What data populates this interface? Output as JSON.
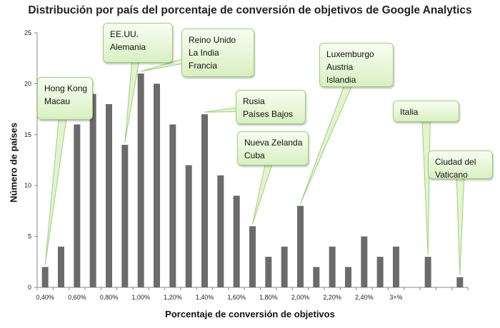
{
  "chart_data": {
    "type": "bar",
    "title": "Distribución por país del porcentaje de conversión de objetivos de Google Analytics",
    "xlabel": "Porcentaje de conversión de objetivos",
    "ylabel": "Número de países",
    "ylim": [
      0,
      25
    ],
    "y_ticks": [
      "0",
      "5",
      "10",
      "15",
      "20",
      "25"
    ],
    "x_tick_labels": [
      "0,40%",
      "0,60%",
      "0,80%",
      "1,00%",
      "1,20%",
      "1,40%",
      "1,60%",
      "1,80%",
      "2,00%",
      "2,20%",
      "2,40%",
      "3+%"
    ],
    "values": [
      2,
      4,
      16,
      19,
      18,
      14,
      21,
      20,
      16,
      12,
      17,
      11,
      9,
      6,
      3,
      4,
      8,
      2,
      4,
      2,
      5,
      3,
      4,
      0,
      3,
      0,
      1
    ],
    "color": "#6b6b6b",
    "grid": false,
    "annotations": [
      {
        "lines": [
          "Hong Kong",
          "Macau"
        ],
        "bar_index": 0
      },
      {
        "lines": [
          "EE.UU.",
          "Alemania"
        ],
        "bar_index": 5
      },
      {
        "lines": [
          "Reino Unido",
          "La India",
          "Francia"
        ],
        "bar_index": 6
      },
      {
        "lines": [
          "Rusia",
          "Países Bajos"
        ],
        "bar_index": 10
      },
      {
        "lines": [
          "Nueva Zelanda",
          "Cuba"
        ],
        "bar_index": 13
      },
      {
        "lines": [
          "Luxemburgo",
          "Austria",
          "Islandia"
        ],
        "bar_index": 16
      },
      {
        "lines": [
          "Italia"
        ],
        "bar_index": 24
      },
      {
        "lines": [
          "Ciudad del",
          "Vaticano"
        ],
        "bar_index": 26
      }
    ]
  }
}
